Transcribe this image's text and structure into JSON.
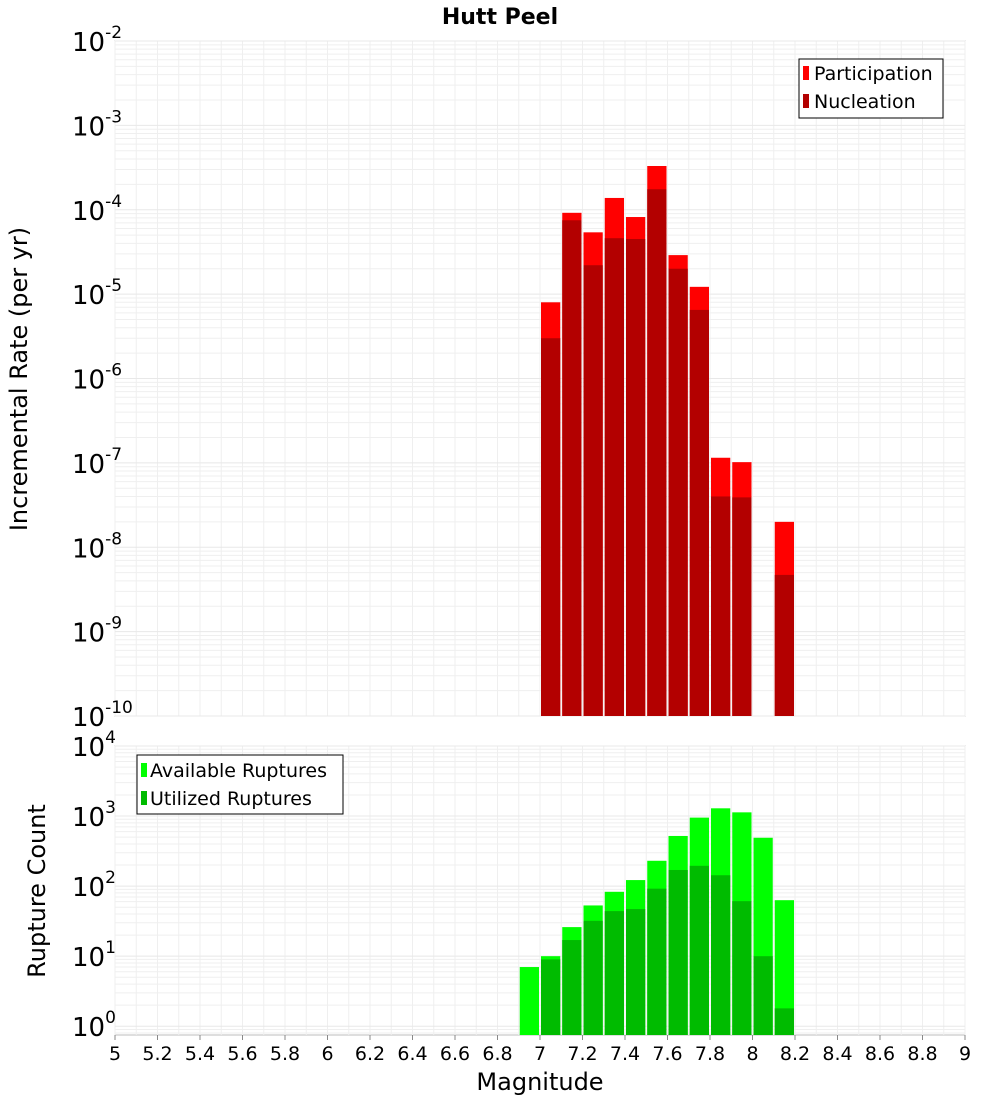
{
  "chart_data": [
    {
      "type": "bar",
      "title": "Hutt Peel",
      "ylabel": "Incremental Rate (per yr)",
      "xlabel": "",
      "yscale": "log",
      "ylim": [
        1e-10,
        0.01
      ],
      "xlim": [
        5,
        9
      ],
      "y_tick_exponents": [
        "-10",
        "-9",
        "-8",
        "-7",
        "-6",
        "-5",
        "-4",
        "-3",
        "-2"
      ],
      "y_tick_base": "10",
      "grid": true,
      "legend_position": "top-right",
      "bar_width": 0.1,
      "categories": [
        7.0,
        7.1,
        7.2,
        7.3,
        7.4,
        7.5,
        7.6,
        7.7,
        7.8,
        7.9,
        8.1
      ],
      "series": [
        {
          "name": "Participation",
          "color": "#ff0000",
          "values": [
            8e-06,
            9.2e-05,
            5.4e-05,
            0.000138,
            8.2e-05,
            0.00033,
            2.9e-05,
            1.22e-05,
            1.15e-07,
            1.02e-07,
            2e-08
          ]
        },
        {
          "name": "Nucleation",
          "color": "#b30000",
          "values": [
            3e-06,
            7.5e-05,
            2.2e-05,
            4.6e-05,
            4.5e-05,
            0.000175,
            2e-05,
            6.5e-06,
            4e-08,
            3.9e-08,
            4.7e-09
          ]
        }
      ]
    },
    {
      "type": "bar",
      "title": "",
      "ylabel": "Rupture Count",
      "xlabel": "Magnitude",
      "yscale": "log",
      "ylim": [
        0.75,
        10000
      ],
      "xlim": [
        5,
        9
      ],
      "y_tick_exponents": [
        "0",
        "1",
        "2",
        "3",
        "4"
      ],
      "y_tick_base": "10",
      "x_ticks": [
        "5",
        "5.2",
        "5.4",
        "5.6",
        "5.8",
        "6",
        "6.2",
        "6.4",
        "6.6",
        "6.8",
        "7",
        "7.2",
        "7.4",
        "7.6",
        "7.8",
        "8",
        "8.2",
        "8.4",
        "8.6",
        "8.8",
        "9"
      ],
      "grid": true,
      "legend_position": "top-left",
      "bar_width": 0.1,
      "categories": [
        6.9,
        7.0,
        7.1,
        7.2,
        7.3,
        7.4,
        7.5,
        7.6,
        7.7,
        7.8,
        7.9,
        8.0,
        8.1
      ],
      "series": [
        {
          "name": "Available Ruptures",
          "color": "#00ff00",
          "values": [
            7,
            10,
            26,
            53,
            83,
            122,
            230,
            520,
            950,
            1290,
            1130,
            490,
            63
          ]
        },
        {
          "name": "Utilized Ruptures",
          "color": "#00bb00",
          "values": [
            0,
            9,
            17,
            32,
            44,
            47,
            92,
            170,
            195,
            143,
            61,
            10,
            1.8
          ]
        }
      ]
    }
  ]
}
